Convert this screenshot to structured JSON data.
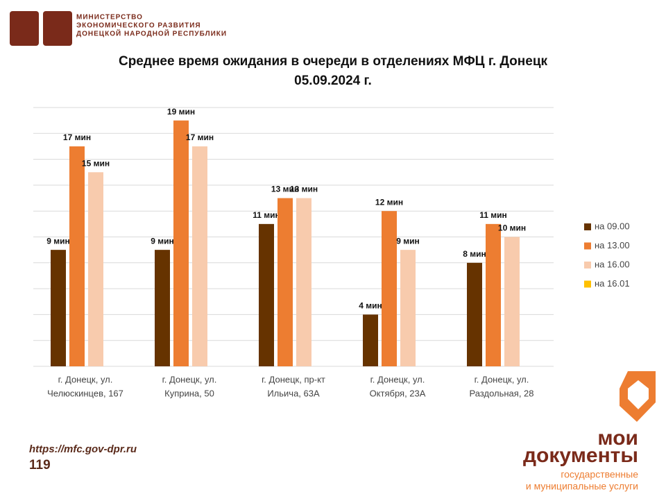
{
  "header": {
    "ministry": [
      "МИНИСТЕРСТВО",
      "ЭКОНОМИЧЕСКОГО РАЗВИТИЯ",
      "ДОНЕЦКОЙ НАРОДНОЙ РЕСПУБЛИКИ"
    ]
  },
  "chart_data": {
    "type": "bar",
    "title": "Среднее время ожидания в очереди в отделениях МФЦ г. Донецк",
    "subtitle": "05.09.2024 г.",
    "categories": [
      [
        "г. Донецк, ул.",
        "Челюскинцев, 167"
      ],
      [
        "г. Донецк, ул.",
        "Куприна, 50"
      ],
      [
        "г. Донецк, пр-кт",
        "Ильича, 63А"
      ],
      [
        "г. Донецк, ул.",
        "Октября, 23А"
      ],
      [
        "г. Донецк, ул.",
        "Раздольная, 28"
      ]
    ],
    "series": [
      {
        "name": "на 09.00",
        "color": "#663300",
        "values": [
          9,
          9,
          11,
          4,
          8
        ],
        "value_labels": [
          "9 мин",
          "9 мин",
          "11 мин",
          "4 мин",
          "8 мин"
        ]
      },
      {
        "name": "на 13.00",
        "color": "#ED7D31",
        "values": [
          17,
          19,
          13,
          12,
          11
        ],
        "value_labels": [
          "17 мин",
          "19 мин",
          "13 мин",
          "12 мин",
          "11 мин"
        ]
      },
      {
        "name": "на 16.00",
        "color": "#F8CBAD",
        "values": [
          15,
          17,
          13,
          9,
          10
        ],
        "value_labels": [
          "15 мин",
          "17 мин",
          "13 мин",
          "9 мин",
          "10 мин"
        ]
      },
      {
        "name": "на 16.01",
        "color": "#FFC000",
        "values": [
          null,
          null,
          null,
          null,
          null
        ]
      }
    ],
    "ylim": [
      0,
      20
    ],
    "yticks": [
      0,
      2,
      4,
      6,
      8,
      10,
      12,
      14,
      16,
      18,
      20
    ],
    "grid": true,
    "legend": "right"
  },
  "footer": {
    "url": "https://mfc.gov-dpr.ru",
    "page": "119",
    "brand": [
      "мои",
      "документы"
    ],
    "tagline": [
      "государственные",
      "и муниципальные услуги"
    ]
  }
}
